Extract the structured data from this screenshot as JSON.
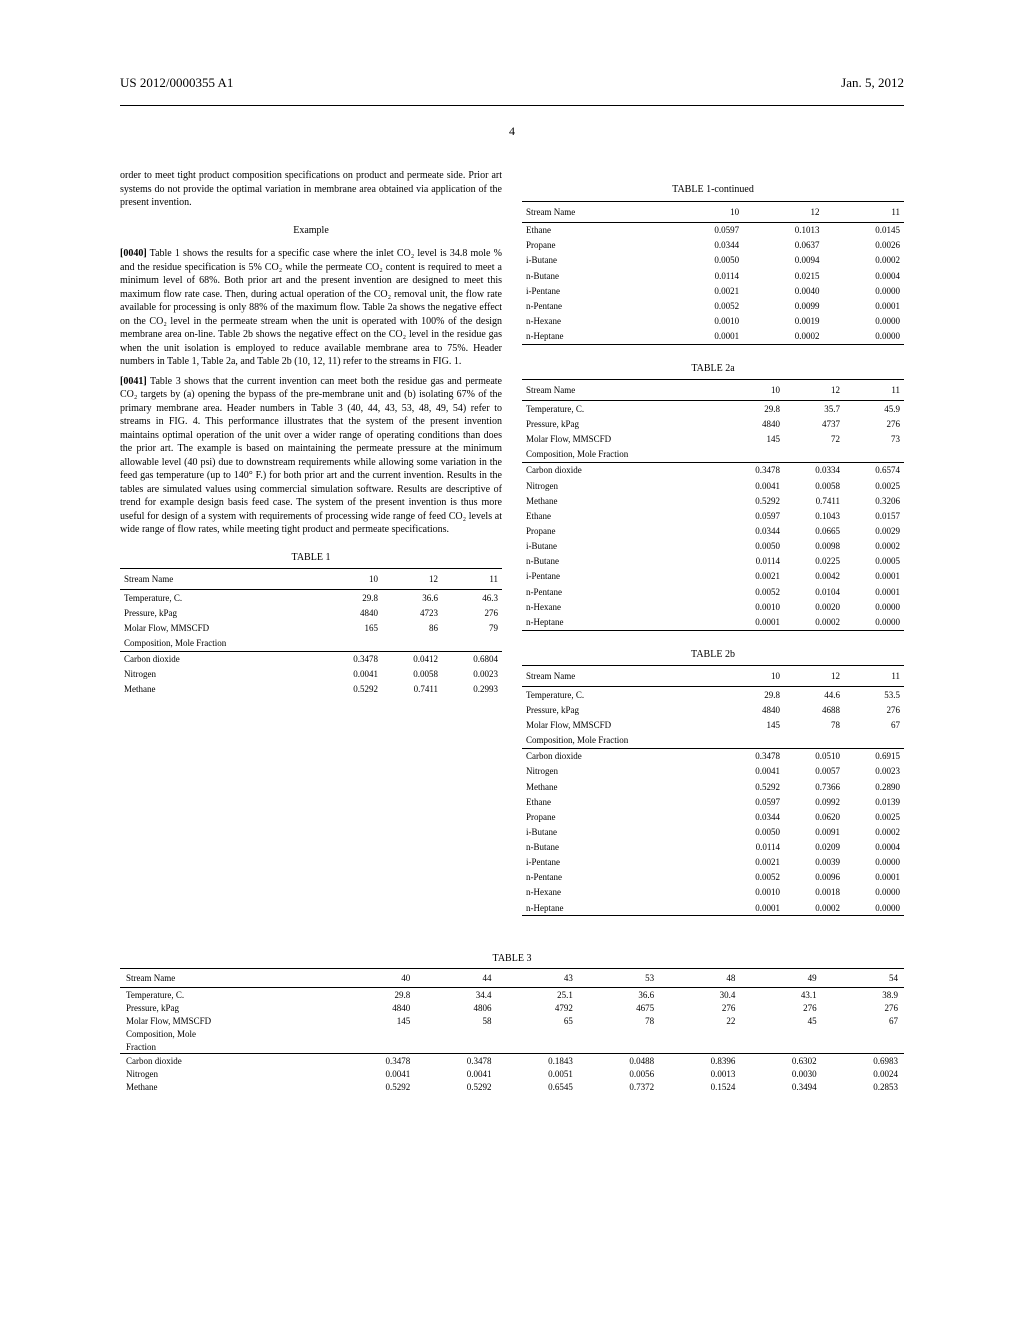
{
  "header": {
    "pub": "US 2012/0000355 A1",
    "date": "Jan. 5, 2012",
    "page": "4"
  },
  "left": {
    "p0": "order to meet tight product composition specifications on product and permeate side. Prior art systems do not provide the optimal variation in membrane area obtained via application of the present invention.",
    "exampleHeading": "Example",
    "p1_lead": "[0040]",
    "p1": " Table 1 shows the results for a specific case where the inlet CO₂ level is 34.8 mole % and the residue specification is 5% CO₂ while the permeate CO₂ content is required to meet a minimum level of 68%. Both prior art and the present invention are designed to meet this maximum flow rate case. Then, during actual operation of the CO₂ removal unit, the flow rate available for processing is only 88% of the maximum flow. Table 2a shows the negative effect on the CO₂ level in the permeate stream when the unit is operated with 100% of the design membrane area on-line. Table 2b shows the negative effect on the CO₂ level in the residue gas when the unit isolation is employed to reduce available membrane area to 75%. Header numbers in Table 1, Table 2a, and Table 2b (10, 12, 11) refer to the streams in FIG. 1.",
    "p2_lead": "[0041]",
    "p2": " Table 3 shows that the current invention can meet both the residue gas and permeate CO₂ targets by (a) opening the bypass of the pre-membrane unit and (b) isolating 67% of the primary membrane area. Header numbers in Table 3 (40, 44, 43, 53, 48, 49, 54) refer to streams in FIG. 4. This performance illustrates that the system of the present invention maintains optimal operation of the unit over a wider range of operating conditions than does the prior art. The example is based on maintaining the permeate pressure at the minimum allowable level (40 psi) due to downstream requirements while allowing some variation in the feed gas temperature (up to 140° F.) for both prior art and the current invention. Results in the tables are simulated values using commercial simulation software. Results are descriptive of trend for example design basis feed case. The system of the present invention is thus more useful for design of a system with requirements of processing wide range of feed CO₂ levels at wide range of flow rates, while meeting tight product and permeate specifications.",
    "t1": {
      "title": "TABLE 1",
      "hdr": [
        "Stream Name",
        "10",
        "12",
        "11"
      ],
      "rowsA": [
        [
          "Temperature, C.",
          "29.8",
          "36.6",
          "46.3"
        ],
        [
          "Pressure, kPag",
          "4840",
          "4723",
          "276"
        ],
        [
          "Molar Flow, MMSCFD",
          "165",
          "86",
          "79"
        ],
        [
          "Composition, Mole Fraction",
          "",
          "",
          ""
        ]
      ],
      "rowsB": [
        [
          "Carbon dioxide",
          "0.3478",
          "0.0412",
          "0.6804"
        ],
        [
          "Nitrogen",
          "0.0041",
          "0.0058",
          "0.0023"
        ],
        [
          "Methane",
          "0.5292",
          "0.7411",
          "0.2993"
        ]
      ]
    }
  },
  "right": {
    "t1c": {
      "title": "TABLE 1-continued",
      "hdr": [
        "Stream Name",
        "10",
        "12",
        "11"
      ],
      "rows": [
        [
          "Ethane",
          "0.0597",
          "0.1013",
          "0.0145"
        ],
        [
          "Propane",
          "0.0344",
          "0.0637",
          "0.0026"
        ],
        [
          "i-Butane",
          "0.0050",
          "0.0094",
          "0.0002"
        ],
        [
          "n-Butane",
          "0.0114",
          "0.0215",
          "0.0004"
        ],
        [
          "i-Pentane",
          "0.0021",
          "0.0040",
          "0.0000"
        ],
        [
          "n-Pentane",
          "0.0052",
          "0.0099",
          "0.0001"
        ],
        [
          "n-Hexane",
          "0.0010",
          "0.0019",
          "0.0000"
        ],
        [
          "n-Heptane",
          "0.0001",
          "0.0002",
          "0.0000"
        ]
      ]
    },
    "t2a": {
      "title": "TABLE 2a",
      "hdr": [
        "Stream Name",
        "10",
        "12",
        "11"
      ],
      "rowsA": [
        [
          "Temperature, C.",
          "29.8",
          "35.7",
          "45.9"
        ],
        [
          "Pressure, kPag",
          "4840",
          "4737",
          "276"
        ],
        [
          "Molar Flow, MMSCFD",
          "145",
          "72",
          "73"
        ],
        [
          "Composition, Mole Fraction",
          "",
          "",
          ""
        ]
      ],
      "rowsB": [
        [
          "Carbon dioxide",
          "0.3478",
          "0.0334",
          "0.6574"
        ],
        [
          "Nitrogen",
          "0.0041",
          "0.0058",
          "0.0025"
        ],
        [
          "Methane",
          "0.5292",
          "0.7411",
          "0.3206"
        ],
        [
          "Ethane",
          "0.0597",
          "0.1043",
          "0.0157"
        ],
        [
          "Propane",
          "0.0344",
          "0.0665",
          "0.0029"
        ],
        [
          "i-Butane",
          "0.0050",
          "0.0098",
          "0.0002"
        ],
        [
          "n-Butane",
          "0.0114",
          "0.0225",
          "0.0005"
        ],
        [
          "i-Pentane",
          "0.0021",
          "0.0042",
          "0.0001"
        ],
        [
          "n-Pentane",
          "0.0052",
          "0.0104",
          "0.0001"
        ],
        [
          "n-Hexane",
          "0.0010",
          "0.0020",
          "0.0000"
        ],
        [
          "n-Heptane",
          "0.0001",
          "0.0002",
          "0.0000"
        ]
      ]
    },
    "t2b": {
      "title": "TABLE 2b",
      "hdr": [
        "Stream Name",
        "10",
        "12",
        "11"
      ],
      "rowsA": [
        [
          "Temperature, C.",
          "29.8",
          "44.6",
          "53.5"
        ],
        [
          "Pressure, kPag",
          "4840",
          "4688",
          "276"
        ],
        [
          "Molar Flow, MMSCFD",
          "145",
          "78",
          "67"
        ],
        [
          "Composition, Mole Fraction",
          "",
          "",
          ""
        ]
      ],
      "rowsB": [
        [
          "Carbon dioxide",
          "0.3478",
          "0.0510",
          "0.6915"
        ],
        [
          "Nitrogen",
          "0.0041",
          "0.0057",
          "0.0023"
        ],
        [
          "Methane",
          "0.5292",
          "0.7366",
          "0.2890"
        ],
        [
          "Ethane",
          "0.0597",
          "0.0992",
          "0.0139"
        ],
        [
          "Propane",
          "0.0344",
          "0.0620",
          "0.0025"
        ],
        [
          "i-Butane",
          "0.0050",
          "0.0091",
          "0.0002"
        ],
        [
          "n-Butane",
          "0.0114",
          "0.0209",
          "0.0004"
        ],
        [
          "i-Pentane",
          "0.0021",
          "0.0039",
          "0.0000"
        ],
        [
          "n-Pentane",
          "0.0052",
          "0.0096",
          "0.0001"
        ],
        [
          "n-Hexane",
          "0.0010",
          "0.0018",
          "0.0000"
        ],
        [
          "n-Heptane",
          "0.0001",
          "0.0002",
          "0.0000"
        ]
      ]
    }
  },
  "t3": {
    "title": "TABLE 3",
    "hdr": [
      "Stream Name",
      "40",
      "44",
      "43",
      "53",
      "48",
      "49",
      "54"
    ],
    "rowsA": [
      [
        "Temperature, C.",
        "29.8",
        "34.4",
        "25.1",
        "36.6",
        "30.4",
        "43.1",
        "38.9"
      ],
      [
        "Pressure, kPag",
        "4840",
        "4806",
        "4792",
        "4675",
        "276",
        "276",
        "276"
      ],
      [
        "Molar Flow, MMSCFD",
        "145",
        "58",
        "65",
        "78",
        "22",
        "45",
        "67"
      ],
      [
        "Composition, Mole",
        "",
        "",
        "",
        "",
        "",
        "",
        ""
      ],
      [
        "Fraction",
        "",
        "",
        "",
        "",
        "",
        "",
        ""
      ]
    ],
    "rowsB": [
      [
        "Carbon dioxide",
        "0.3478",
        "0.3478",
        "0.1843",
        "0.0488",
        "0.8396",
        "0.6302",
        "0.6983"
      ],
      [
        "Nitrogen",
        "0.0041",
        "0.0041",
        "0.0051",
        "0.0056",
        "0.0013",
        "0.0030",
        "0.0024"
      ],
      [
        "Methane",
        "0.5292",
        "0.5292",
        "0.6545",
        "0.7372",
        "0.1524",
        "0.3494",
        "0.2853"
      ]
    ]
  }
}
